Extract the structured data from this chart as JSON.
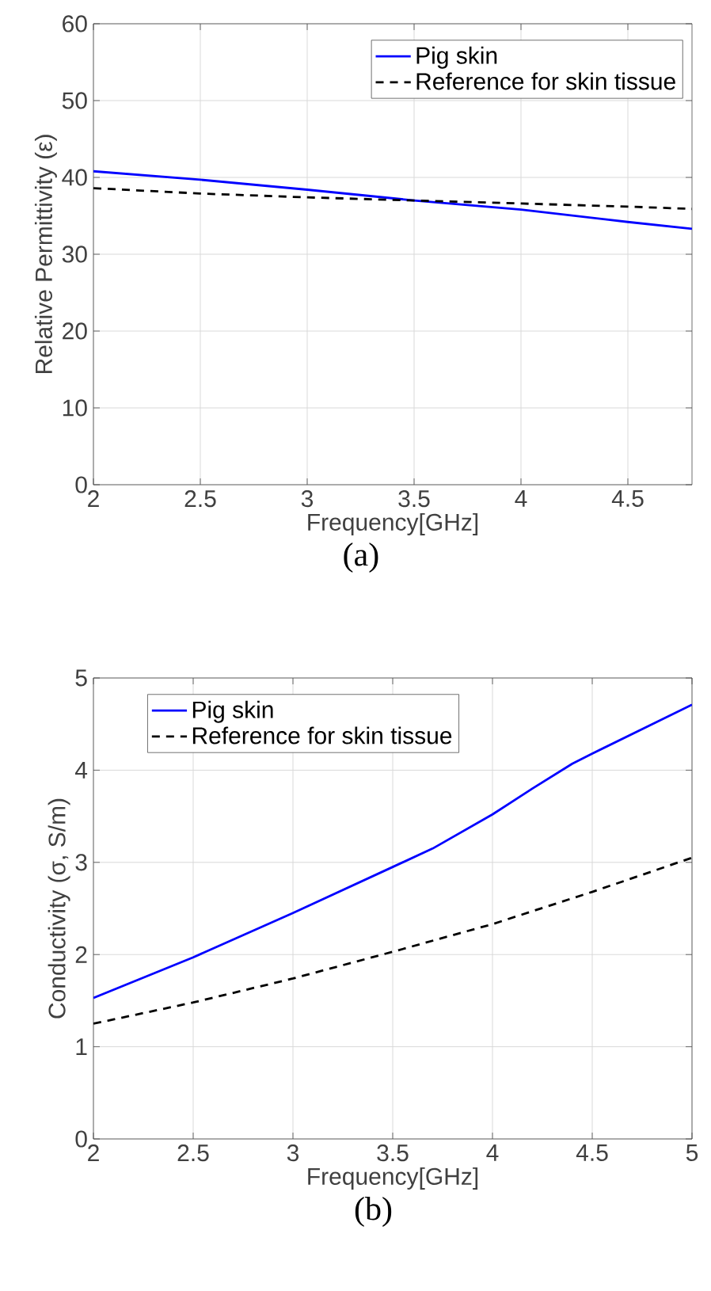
{
  "chart_data": [
    {
      "type": "line",
      "xlabel": "Frequency[GHz]",
      "ylabel": "Relative Permittivity (ε)",
      "annotations": [
        "(a)"
      ],
      "xlim": [
        2,
        4.8
      ],
      "ylim": [
        0,
        60
      ],
      "xticks": [
        2,
        2.5,
        3,
        3.5,
        4,
        4.5
      ],
      "yticks": [
        0,
        10,
        20,
        30,
        40,
        50,
        60
      ],
      "grid": true,
      "legend": "top right",
      "series": [
        {
          "name": "Pig skin",
          "color": "#0000ff",
          "line_style": "solid",
          "x": [
            2,
            2.5,
            3,
            3.5,
            4,
            4.5,
            4.8
          ],
          "values": [
            40.8,
            39.7,
            38.4,
            37.0,
            35.8,
            34.2,
            33.3
          ]
        },
        {
          "name": "Reference for skin tissue",
          "color": "#000000",
          "line_style": "dashed",
          "x": [
            2,
            2.5,
            3,
            3.5,
            4,
            4.5,
            4.8
          ],
          "values": [
            38.6,
            37.9,
            37.4,
            37.0,
            36.6,
            36.2,
            35.9
          ]
        }
      ]
    },
    {
      "type": "line",
      "xlabel": "Frequency[GHz]",
      "ylabel": "Conductivity (σ, S/m)",
      "annotations": [
        "(b)"
      ],
      "xlim": [
        2,
        5
      ],
      "ylim": [
        0,
        5
      ],
      "xticks": [
        2,
        2.5,
        3,
        3.5,
        4,
        4.5,
        5
      ],
      "yticks": [
        0,
        1,
        2,
        3,
        4,
        5
      ],
      "grid": true,
      "legend": "top left",
      "series": [
        {
          "name": "Pig skin",
          "color": "#0000ff",
          "line_style": "solid",
          "x": [
            2,
            2.5,
            3,
            3.5,
            3.7,
            4,
            4.2,
            4.4,
            4.5,
            5
          ],
          "values": [
            1.53,
            1.97,
            2.45,
            2.95,
            3.15,
            3.52,
            3.8,
            4.07,
            4.18,
            4.71
          ]
        },
        {
          "name": "Reference for skin tissue",
          "color": "#000000",
          "line_style": "dashed",
          "x": [
            2,
            2.5,
            3,
            3.5,
            4,
            4.5,
            5
          ],
          "values": [
            1.25,
            1.48,
            1.74,
            2.03,
            2.33,
            2.68,
            3.05
          ]
        }
      ]
    }
  ]
}
